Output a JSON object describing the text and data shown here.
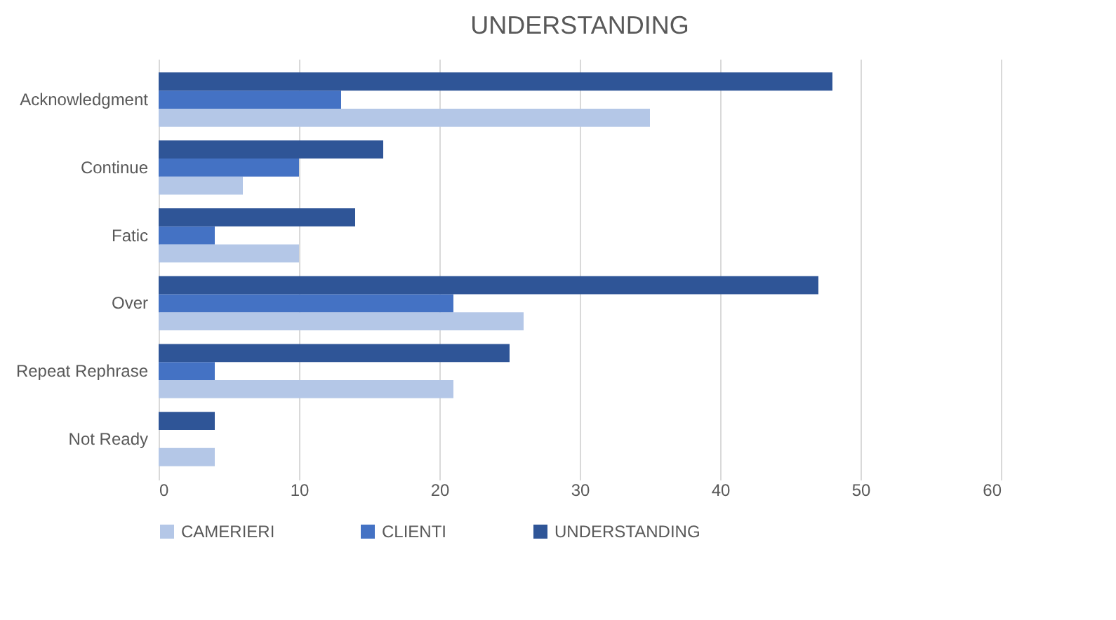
{
  "chart_data": {
    "type": "bar",
    "orientation": "horizontal",
    "title": "UNDERSTANDING",
    "categories": [
      "Acknowledgment",
      "Continue",
      "Fatic",
      "Over",
      "Repeat Rephrase",
      "Not Ready"
    ],
    "series": [
      {
        "name": "CAMERIERI",
        "color": "#b4c7e7",
        "values": [
          35,
          6,
          10,
          26,
          21,
          4
        ]
      },
      {
        "name": "CLIENTI",
        "color": "#4472c4",
        "values": [
          13,
          10,
          4,
          21,
          4,
          0
        ]
      },
      {
        "name": "UNDERSTANDING",
        "color": "#2f5597",
        "values": [
          48,
          16,
          14,
          47,
          25,
          4
        ]
      }
    ],
    "xlim": [
      0,
      60
    ],
    "xticks": [
      0,
      10,
      20,
      30,
      40,
      50,
      60
    ],
    "grid": "x",
    "legend": "bottom"
  }
}
